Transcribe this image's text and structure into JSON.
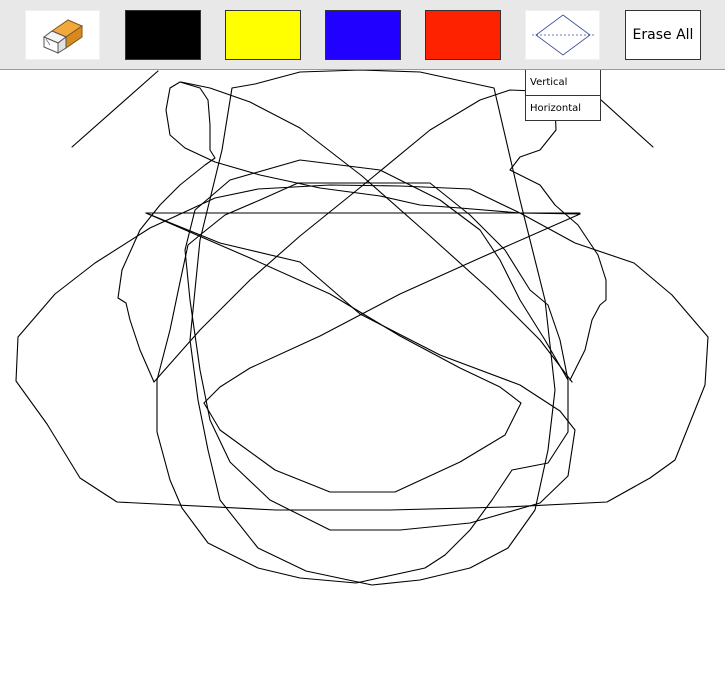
{
  "toolbar": {
    "tools": [
      {
        "name": "eraser",
        "icon": "eraser-icon"
      },
      {
        "name": "black",
        "color": "#000000"
      },
      {
        "name": "yellow",
        "color": "#FFFF00"
      },
      {
        "name": "blue",
        "color": "#2200FF"
      },
      {
        "name": "red",
        "color": "#FF2200"
      },
      {
        "name": "symmetry",
        "icon": "symmetry-diamond-icon"
      }
    ],
    "erase_all_label": "Erase All"
  },
  "symmetry_menu": {
    "items": [
      {
        "label": "Vertical"
      },
      {
        "label": "Horizontal"
      }
    ]
  },
  "drawing": {
    "stroke_color": "#000000"
  }
}
